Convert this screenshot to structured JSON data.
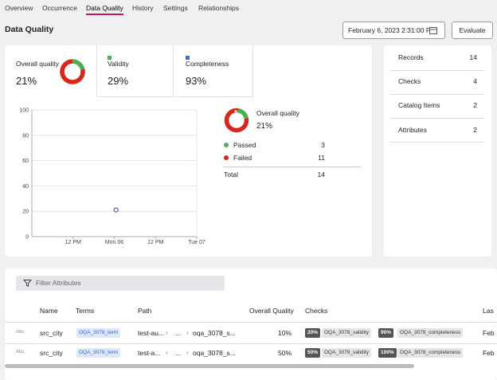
{
  "tabs": [
    "Overview",
    "Occurrence",
    "Data Quality",
    "History",
    "Settings",
    "Relationships"
  ],
  "active_tab": 2,
  "header": {
    "title": "Data Quality",
    "date": "February 6, 2023 2:31:00 P",
    "button": "Evaluate"
  },
  "metrics": [
    {
      "label": "Overall quality",
      "value": {
        "value": 21,
        "label": "21%"
      }
    },
    {
      "label": "Validity",
      "value": "29%",
      "color": "#4caf50"
    },
    {
      "label": "Completeness",
      "value": "93%",
      "color": "#3f6fd8"
    }
  ],
  "trend_chart": {
    "type": "scatter",
    "ylim": [
      0,
      100
    ],
    "yticks": [
      0,
      20,
      40,
      60,
      80,
      100
    ],
    "xlim": [
      0,
      48
    ],
    "xticks": [
      {
        "value": 12,
        "label": "12 PM"
      },
      {
        "value": 24,
        "label": "Mon 06"
      },
      {
        "value": 36,
        "label": "12 PM"
      },
      {
        "value": 48,
        "label": "Tue 07"
      }
    ],
    "x": [
      24.5
    ],
    "values": [
      21
    ],
    "color": "#3a5bd9",
    "grid": true
  },
  "summary": {
    "title": "Overall quality",
    "value": "21%",
    "rows": [
      {
        "label": "Passed",
        "value": 3,
        "color": "#4caf50"
      },
      {
        "label": "Failed",
        "value": 11,
        "color": "#d9261c"
      }
    ],
    "total": {
      "label": "Total",
      "value": 14
    }
  },
  "stats": [
    {
      "label": "Records",
      "value": 14
    },
    {
      "label": "Checks",
      "value": 4
    },
    {
      "label": "Catalog Items",
      "value": 2
    },
    {
      "label": "Attributes",
      "value": 2
    }
  ],
  "filter_placeholder": "Filter Attributes",
  "table": {
    "columns": [
      "Name",
      "Terms",
      "Path",
      "Overall Quality",
      "Checks",
      "Las"
    ],
    "rows": [
      {
        "type": "Abc",
        "name": "src_city",
        "term": "OQA_3078_term",
        "path": [
          "test-au...",
          "...",
          "oqa_3078_s..."
        ],
        "quality": {
          "value": 10,
          "label": "10%"
        },
        "checks": [
          {
            "score": "20%",
            "name": "OQA_3078_validity"
          },
          {
            "score": "90%",
            "name": "OQA_3078_completeness"
          }
        ],
        "last": "Feb"
      },
      {
        "type": "Abc",
        "name": "src_city",
        "term": "OQA_3078_term",
        "path": [
          "test-a...",
          "...",
          "oqa_3078_s..."
        ],
        "quality": {
          "value": 50,
          "label": "50%"
        },
        "checks": [
          {
            "score": "50%",
            "name": "OQA_3078_validity"
          },
          {
            "score": "100%",
            "name": "OQA_3078_completeness"
          }
        ],
        "last": "Feb"
      }
    ]
  }
}
